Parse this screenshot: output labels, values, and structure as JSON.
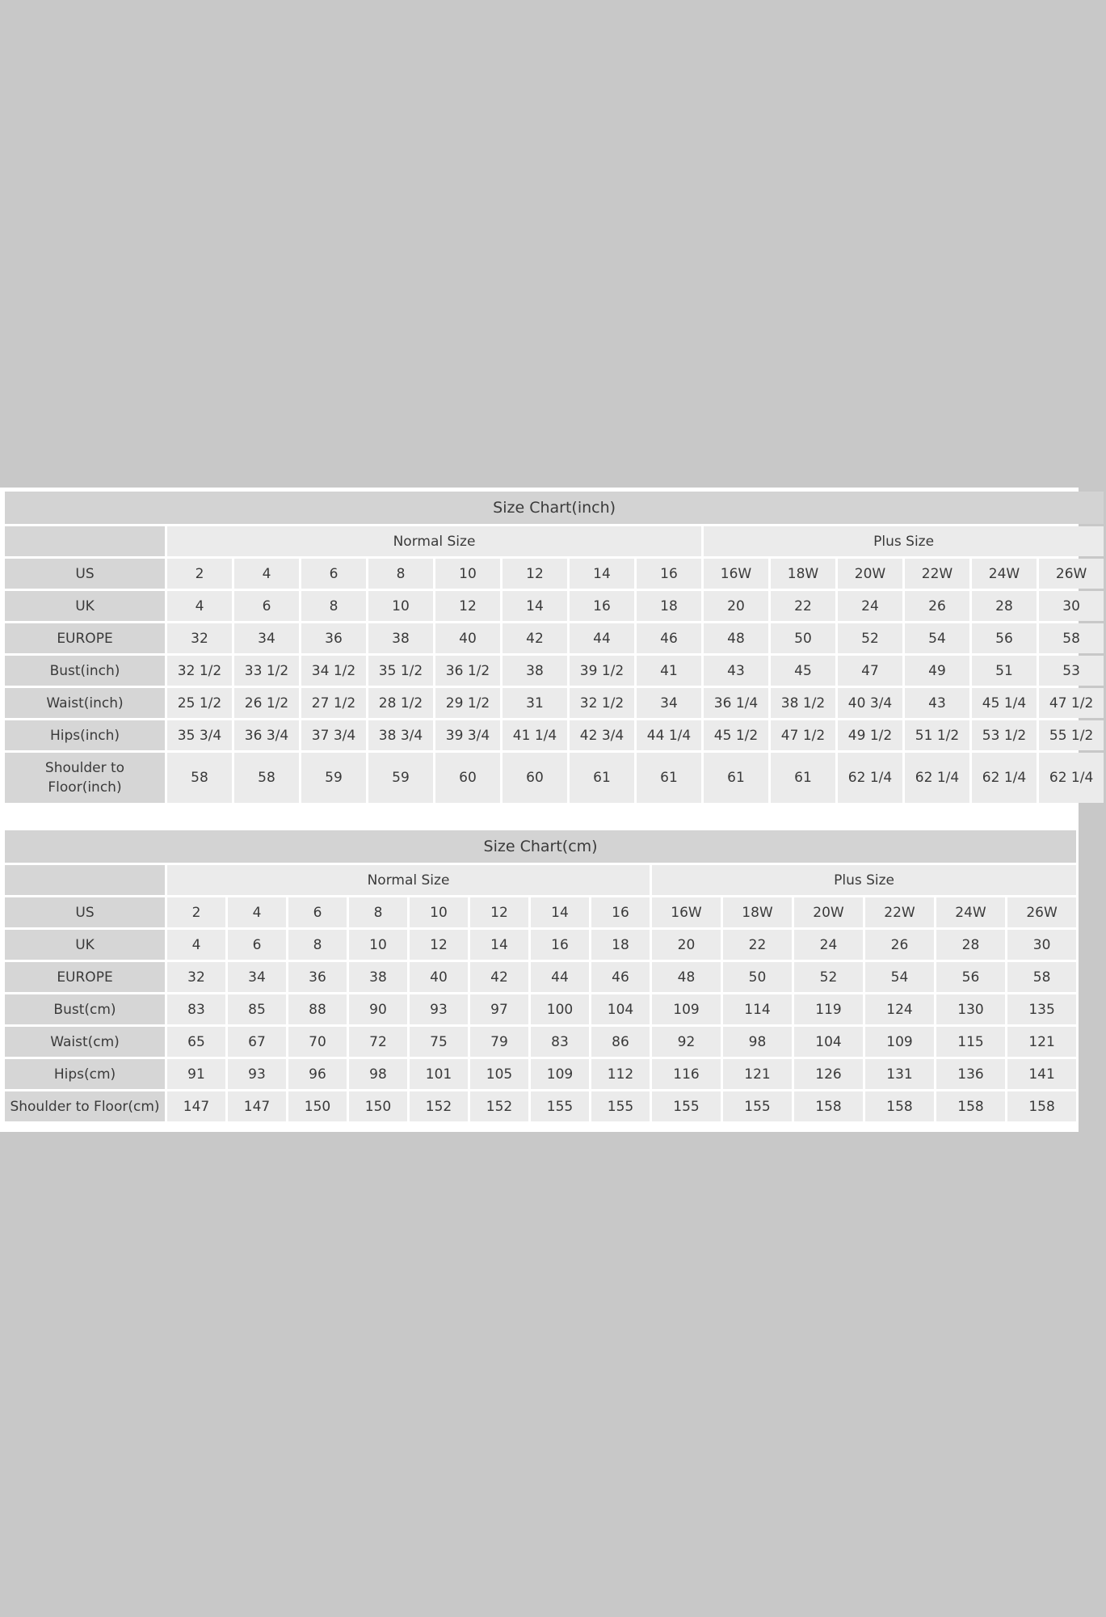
{
  "colors": {
    "background": "#c8c8c8",
    "title_bar": "#d3d3d3",
    "label_cell": "#d6d6d6",
    "data_cell": "#ebebeb"
  },
  "tables": [
    {
      "title": "Size Chart(inch)",
      "groups": [
        "Normal Size",
        "Plus Size"
      ],
      "rows": [
        {
          "label": "US",
          "values": [
            "2",
            "4",
            "6",
            "8",
            "10",
            "12",
            "14",
            "16",
            "16W",
            "18W",
            "20W",
            "22W",
            "24W",
            "26W"
          ]
        },
        {
          "label": "UK",
          "values": [
            "4",
            "6",
            "8",
            "10",
            "12",
            "14",
            "16",
            "18",
            "20",
            "22",
            "24",
            "26",
            "28",
            "30"
          ]
        },
        {
          "label": "EUROPE",
          "values": [
            "32",
            "34",
            "36",
            "38",
            "40",
            "42",
            "44",
            "46",
            "48",
            "50",
            "52",
            "54",
            "56",
            "58"
          ]
        },
        {
          "label": "Bust(inch)",
          "values": [
            "32 1/2",
            "33 1/2",
            "34 1/2",
            "35 1/2",
            "36 1/2",
            "38",
            "39 1/2",
            "41",
            "43",
            "45",
            "47",
            "49",
            "51",
            "53"
          ]
        },
        {
          "label": "Waist(inch)",
          "values": [
            "25 1/2",
            "26 1/2",
            "27 1/2",
            "28 1/2",
            "29 1/2",
            "31",
            "32 1/2",
            "34",
            "36 1/4",
            "38 1/2",
            "40 3/4",
            "43",
            "45 1/4",
            "47 1/2"
          ]
        },
        {
          "label": "Hips(inch)",
          "values": [
            "35 3/4",
            "36 3/4",
            "37 3/4",
            "38 3/4",
            "39 3/4",
            "41 1/4",
            "42 3/4",
            "44 1/4",
            "45 1/2",
            "47 1/2",
            "49 1/2",
            "51 1/2",
            "53 1/2",
            "55 1/2"
          ]
        },
        {
          "label": "Shoulder to Floor(inch)",
          "values": [
            "58",
            "58",
            "59",
            "59",
            "60",
            "60",
            "61",
            "61",
            "61",
            "61",
            "62 1/4",
            "62 1/4",
            "62 1/4",
            "62 1/4"
          ]
        }
      ]
    },
    {
      "title": "Size Chart(cm)",
      "groups": [
        "Normal Size",
        "Plus Size"
      ],
      "rows": [
        {
          "label": "US",
          "values": [
            "2",
            "4",
            "6",
            "8",
            "10",
            "12",
            "14",
            "16",
            "16W",
            "18W",
            "20W",
            "22W",
            "24W",
            "26W"
          ]
        },
        {
          "label": "UK",
          "values": [
            "4",
            "6",
            "8",
            "10",
            "12",
            "14",
            "16",
            "18",
            "20",
            "22",
            "24",
            "26",
            "28",
            "30"
          ]
        },
        {
          "label": "EUROPE",
          "values": [
            "32",
            "34",
            "36",
            "38",
            "40",
            "42",
            "44",
            "46",
            "48",
            "50",
            "52",
            "54",
            "56",
            "58"
          ]
        },
        {
          "label": "Bust(cm)",
          "values": [
            "83",
            "85",
            "88",
            "90",
            "93",
            "97",
            "100",
            "104",
            "109",
            "114",
            "119",
            "124",
            "130",
            "135"
          ]
        },
        {
          "label": "Waist(cm)",
          "values": [
            "65",
            "67",
            "70",
            "72",
            "75",
            "79",
            "83",
            "86",
            "92",
            "98",
            "104",
            "109",
            "115",
            "121"
          ]
        },
        {
          "label": "Hips(cm)",
          "values": [
            "91",
            "93",
            "96",
            "98",
            "101",
            "105",
            "109",
            "112",
            "116",
            "121",
            "126",
            "131",
            "136",
            "141"
          ]
        },
        {
          "label": "Shoulder to Floor(cm)",
          "values": [
            "147",
            "147",
            "150",
            "150",
            "152",
            "152",
            "155",
            "155",
            "155",
            "155",
            "158",
            "158",
            "158",
            "158"
          ]
        }
      ]
    }
  ]
}
